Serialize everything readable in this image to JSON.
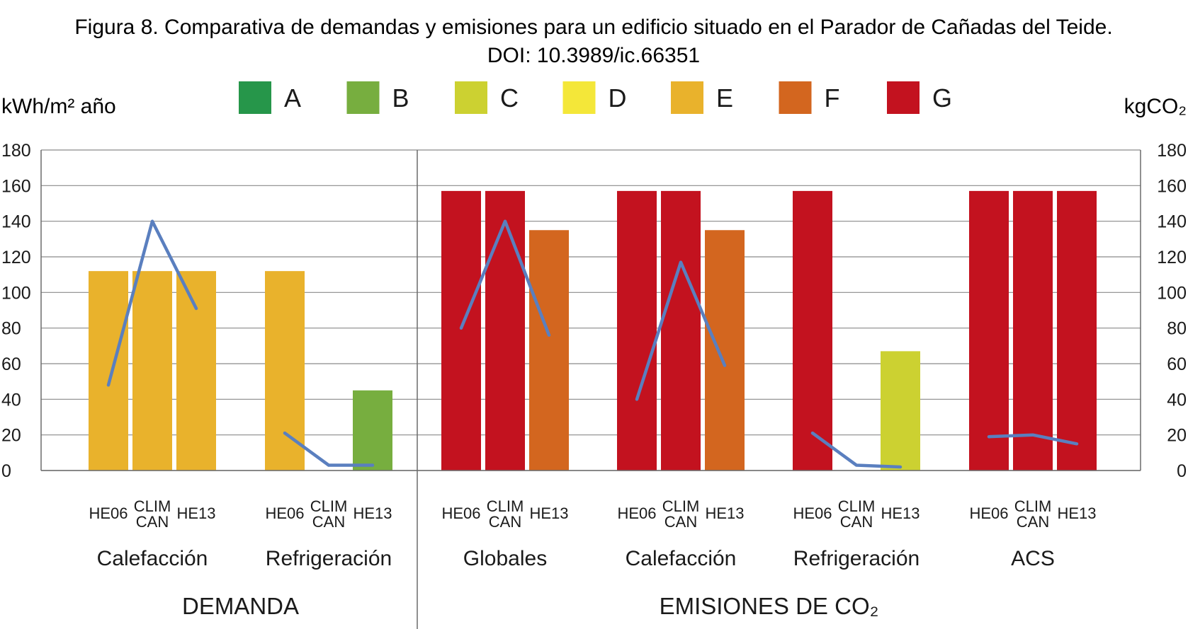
{
  "title": "Figura 8. Comparativa de demandas y emisiones para un edificio situado en el Parador de Cañadas del Teide.",
  "subtitle": "DOI: 10.3989/ic.66351",
  "legend": [
    {
      "label": "A",
      "color": "#26964a"
    },
    {
      "label": "B",
      "color": "#77ae3f"
    },
    {
      "label": "C",
      "color": "#ccd131"
    },
    {
      "label": "D",
      "color": "#f4e739"
    },
    {
      "label": "E",
      "color": "#e9b22c"
    },
    {
      "label": "F",
      "color": "#d3661f"
    },
    {
      "label": "G",
      "color": "#c3121f"
    }
  ],
  "line_color": "#5a7fbf",
  "chart_data": {
    "type": "bar",
    "title": "Figura 8. Comparativa de demandas y emisiones para un edificio situado en el Parador de Cañadas del Teide.",
    "y_left_label": "kWh/m² año",
    "y_right_label": "kgCO₂",
    "ylim": [
      0,
      180
    ],
    "y_ticks": [
      0,
      20,
      40,
      60,
      80,
      100,
      120,
      140,
      160,
      180
    ],
    "grid": true,
    "legend_position": "top",
    "sections": [
      {
        "label": "DEMANDA",
        "groups": [
          0,
          1
        ]
      },
      {
        "label": "EMISIONES DE CO₂",
        "groups": [
          2,
          3,
          4,
          5
        ]
      }
    ],
    "groups": [
      {
        "label": "Calefacción",
        "bars": [
          {
            "label": "HE06",
            "value": 112,
            "class": "E"
          },
          {
            "label": "CLIM CAN",
            "value": 112,
            "class": "E"
          },
          {
            "label": "HE13",
            "value": 112,
            "class": "E"
          }
        ],
        "line": [
          48,
          140,
          91
        ]
      },
      {
        "label": "Refrigeración",
        "bars": [
          {
            "label": "HE06",
            "value": 112,
            "class": "E"
          },
          {
            "label": "CLIM CAN",
            "value": null,
            "class": null
          },
          {
            "label": "HE13",
            "value": 45,
            "class": "B"
          }
        ],
        "line": [
          21,
          3,
          3
        ]
      },
      {
        "label": "Globales",
        "bars": [
          {
            "label": "HE06",
            "value": 157,
            "class": "G"
          },
          {
            "label": "CLIM CAN",
            "value": 157,
            "class": "G"
          },
          {
            "label": "HE13",
            "value": 135,
            "class": "F"
          }
        ],
        "line": [
          80,
          140,
          76
        ]
      },
      {
        "label": "Calefacción",
        "bars": [
          {
            "label": "HE06",
            "value": 157,
            "class": "G"
          },
          {
            "label": "CLIM CAN",
            "value": 157,
            "class": "G"
          },
          {
            "label": "HE13",
            "value": 135,
            "class": "F"
          }
        ],
        "line": [
          40,
          117,
          59
        ]
      },
      {
        "label": "Refrigeración",
        "bars": [
          {
            "label": "HE06",
            "value": 157,
            "class": "G"
          },
          {
            "label": "CLIM CAN",
            "value": null,
            "class": null
          },
          {
            "label": "HE13",
            "value": 67,
            "class": "C"
          }
        ],
        "line": [
          21,
          3,
          2
        ]
      },
      {
        "label": "ACS",
        "bars": [
          {
            "label": "HE06",
            "value": 157,
            "class": "G"
          },
          {
            "label": "CLIM CAN",
            "value": 157,
            "class": "G"
          },
          {
            "label": "HE13",
            "value": 157,
            "class": "G"
          }
        ],
        "line": [
          19,
          20,
          15
        ]
      }
    ]
  }
}
